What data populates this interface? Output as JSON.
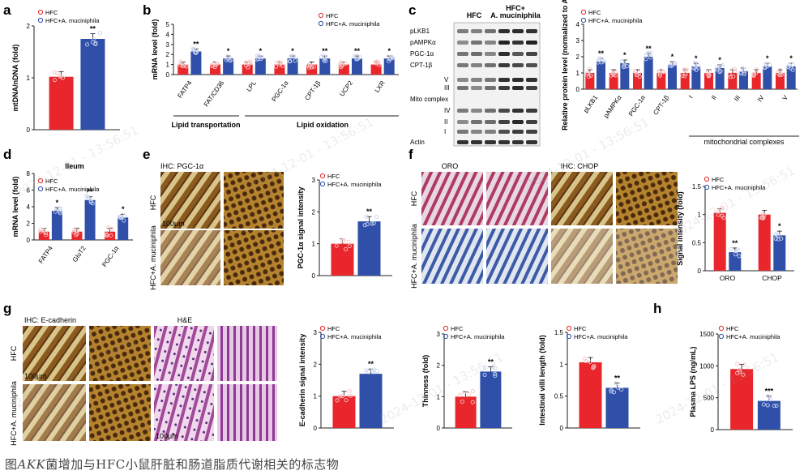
{
  "caption": {
    "prefix": "图",
    "italic": "AKK",
    "rest": "菌增加与HFC小鼠肝脏和肠道脂质代谢相关的标志物"
  },
  "legend": {
    "hfc": "HFC",
    "akk": "HFC+A. muciniphila"
  },
  "colors": {
    "hfc": "#e8262b",
    "akk": "#2f4fa8"
  },
  "watermark": "2024-12-01 - 13:56:51",
  "panels": {
    "a": {
      "letter": "a"
    },
    "b": {
      "letter": "b",
      "group1": "Lipid transportation",
      "group2": "Lipid oxidation"
    },
    "c": {
      "letter": "c",
      "lane_hfc": "HFC",
      "lane_akk1": "HFC+",
      "lane_akk2": "A. muciniphila",
      "blots": [
        "pLKB1",
        "pAMPKα",
        "PGC-1α",
        "CPT-1β",
        "V",
        "III",
        "Mito complex",
        "IV",
        "II",
        "I",
        "Actin"
      ],
      "group": "mitochondrial complexes"
    },
    "d": {
      "letter": "d",
      "title": "Ileum"
    },
    "e": {
      "letter": "e",
      "ihc": "IHC: PGC-1α",
      "row1": "HFC",
      "row2": "HFC+A. muciniphila",
      "scale": "100μm"
    },
    "f": {
      "letter": "f",
      "oro": "ORO",
      "ihc": "IHC: CHOP",
      "row1": "HFC",
      "row2": "HFC+A. muciniphila"
    },
    "g": {
      "letter": "g",
      "ihc": "IHC: E-cadherin",
      "he": "H&E",
      "row1": "HFC",
      "row2": "HFC+A. muciniphila",
      "scale": "100μm"
    },
    "h": {
      "letter": "h"
    }
  },
  "chart_data": [
    {
      "id": "a",
      "type": "bar",
      "categories": [
        "HFC",
        "HFC+A. muciniphila"
      ],
      "values": [
        1.02,
        1.75
      ],
      "ylabel": "mtDNA/nDNA (fold)",
      "ylim": [
        0,
        2
      ],
      "yticks": [
        0,
        1,
        2
      ],
      "sig": [
        "",
        "**"
      ]
    },
    {
      "id": "b",
      "type": "bar",
      "categories": [
        "FATP4",
        "FAT/CD36",
        "LPL",
        "PGC-1α",
        "CPT-1β",
        "UCP2",
        "LXR"
      ],
      "series": [
        {
          "name": "HFC",
          "values": [
            1,
            1,
            1,
            1,
            1,
            1,
            1
          ]
        },
        {
          "name": "HFC+A. muciniphila",
          "values": [
            2.3,
            1.6,
            1.6,
            1.6,
            1.6,
            1.6,
            1.6
          ]
        }
      ],
      "ylabel": "mRNA level (fold)",
      "ylim": [
        0,
        5
      ],
      "yticks": [
        0,
        1,
        2,
        3,
        4,
        5
      ],
      "sig": [
        "**",
        "*",
        "*",
        "*",
        "**",
        "**",
        "*"
      ]
    },
    {
      "id": "c",
      "type": "bar",
      "categories": [
        "pLKB1",
        "pAMPKα",
        "PGC-1α",
        "CPT-1β",
        "I",
        "II",
        "III",
        "IV",
        "V"
      ],
      "series": [
        {
          "name": "HFC",
          "values": [
            1,
            1,
            1,
            1,
            1,
            1,
            1,
            1,
            1
          ]
        },
        {
          "name": "HFC+A. muciniphila",
          "values": [
            1.7,
            1.6,
            2.0,
            1.5,
            1.4,
            1.3,
            1.1,
            1.4,
            1.4
          ]
        }
      ],
      "ylabel": "Relative protein level (normalized to Actin)",
      "ylim": [
        0,
        4
      ],
      "yticks": [
        0,
        1,
        2,
        3,
        4
      ],
      "sig": [
        "**",
        "*",
        "**",
        "*",
        "*",
        "*",
        "",
        "*",
        "*"
      ]
    },
    {
      "id": "d",
      "type": "bar",
      "categories": [
        "FATP4",
        "GluT2",
        "PGC-1α"
      ],
      "series": [
        {
          "name": "HFC",
          "values": [
            1,
            1,
            1
          ]
        },
        {
          "name": "HFC+A. muciniphila",
          "values": [
            3.5,
            4.8,
            2.7
          ]
        }
      ],
      "ylabel": "mRNA level (fold)",
      "ylim": [
        0,
        8
      ],
      "yticks": [
        0,
        2,
        4,
        6,
        8
      ],
      "sig": [
        "*",
        "**",
        "*"
      ]
    },
    {
      "id": "e",
      "type": "bar",
      "categories": [
        "HFC",
        "HFC+A. muciniphila"
      ],
      "values": [
        1.0,
        1.7
      ],
      "ylabel": "PGC-1α signal intensity",
      "ylim": [
        0,
        3
      ],
      "yticks": [
        0,
        1,
        2,
        3
      ],
      "sig": [
        "",
        "**"
      ]
    },
    {
      "id": "f",
      "type": "bar",
      "categories": [
        "ORO",
        "CHOP"
      ],
      "series": [
        {
          "name": "HFC",
          "values": [
            1.03,
            1.0
          ]
        },
        {
          "name": "HFC+A. muciniphila",
          "values": [
            0.33,
            0.63
          ]
        }
      ],
      "ylabel": "Signal intensity (fold)",
      "ylim": [
        0,
        1.5
      ],
      "yticks": [
        0.0,
        0.5,
        1.0,
        1.5
      ],
      "sig": [
        "**",
        "*"
      ]
    },
    {
      "id": "g",
      "type": "bar",
      "categories": [
        "HFC",
        "HFC+A. muciniphila"
      ],
      "values": [
        1.0,
        1.7
      ],
      "ylabel": "E-cadherin signal intensity",
      "ylim": [
        0,
        3
      ],
      "yticks": [
        0,
        1,
        2,
        3
      ],
      "sig": [
        "",
        "**"
      ]
    },
    {
      "id": "g2",
      "type": "bar",
      "categories": [
        "HFC",
        "HFC+A. muciniphila"
      ],
      "values": [
        1.0,
        1.8
      ],
      "ylabel": "Thinness (fold)",
      "ylim": [
        0,
        3
      ],
      "yticks": [
        0,
        1,
        2,
        3
      ],
      "sig": [
        "",
        "**"
      ]
    },
    {
      "id": "g3",
      "type": "bar",
      "categories": [
        "HFC",
        "HFC+A. muciniphila"
      ],
      "values": [
        1.03,
        0.63
      ],
      "ylabel": "Intestinal villi length (fold)",
      "ylim": [
        0,
        1.5
      ],
      "yticks": [
        0.0,
        0.5,
        1.0,
        1.5
      ],
      "sig": [
        "",
        "**"
      ]
    },
    {
      "id": "h",
      "type": "bar",
      "categories": [
        "HFC",
        "HFC+A. muciniphila"
      ],
      "values": [
        950,
        450
      ],
      "ylabel": "Plasma LPS (ng/mL)",
      "ylim": [
        0,
        1500
      ],
      "yticks": [
        0,
        500,
        1000,
        1500
      ],
      "sig": [
        "",
        "***"
      ]
    }
  ]
}
